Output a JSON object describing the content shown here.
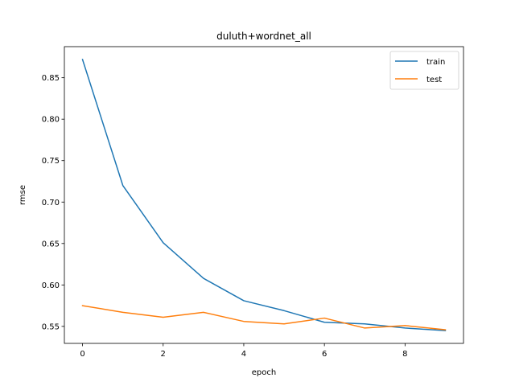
{
  "chart_data": {
    "type": "line",
    "title": "duluth+wordnet_all",
    "xlabel": "epoch",
    "ylabel": "rmse",
    "x": [
      0,
      1,
      2,
      3,
      4,
      5,
      6,
      7,
      8,
      9
    ],
    "xlim": [
      -0.45,
      9.45
    ],
    "ylim": [
      0.5295,
      0.8875
    ],
    "xticks": [
      0,
      2,
      4,
      6,
      8
    ],
    "yticks": [
      0.55,
      0.6,
      0.65,
      0.7,
      0.75,
      0.8,
      0.85
    ],
    "series": [
      {
        "name": "train",
        "color": "#1f77b4",
        "values": [
          0.872,
          0.72,
          0.651,
          0.608,
          0.581,
          0.569,
          0.555,
          0.553,
          0.548,
          0.545
        ]
      },
      {
        "name": "test",
        "color": "#ff7f0e",
        "values": [
          0.575,
          0.567,
          0.561,
          0.567,
          0.556,
          0.553,
          0.56,
          0.548,
          0.551,
          0.546
        ]
      }
    ],
    "grid": false,
    "legend": "top-right"
  }
}
